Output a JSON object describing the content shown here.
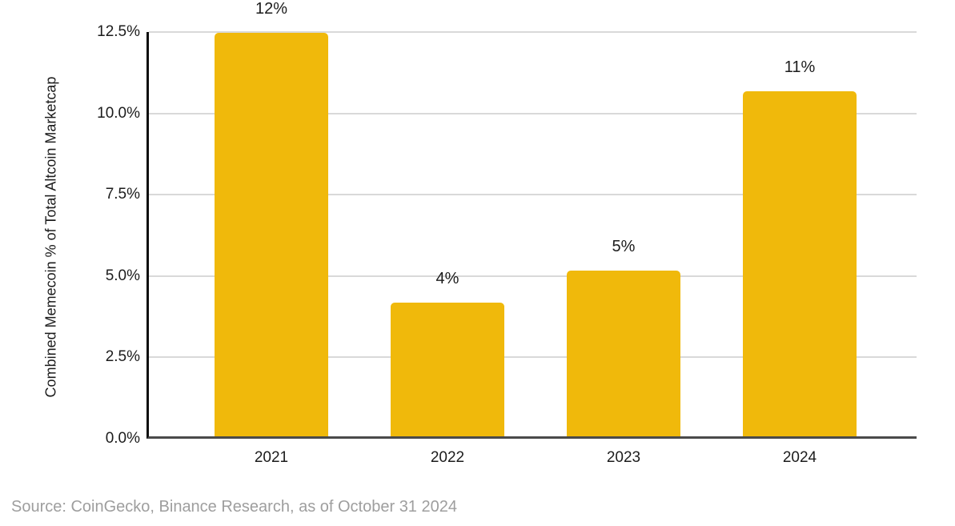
{
  "chart_data": {
    "type": "bar",
    "title": "",
    "categories": [
      "2021",
      "2022",
      "2023",
      "2024"
    ],
    "values": [
      12.4,
      4.1,
      5.1,
      10.6
    ],
    "bar_labels": [
      "12%",
      "4%",
      "5%",
      "11%"
    ],
    "xlabel": "",
    "ylabel": "Combined Memecoin % of Total Altcoin Marketcap",
    "ylim": [
      0,
      12.5
    ],
    "yticks": [
      "12.5%",
      "10.0%",
      "7.5%",
      "5.0%",
      "2.5%",
      "0.0%"
    ],
    "ytick_values": [
      12.5,
      10.0,
      7.5,
      5.0,
      2.5,
      0.0
    ],
    "grid": true,
    "legend": false
  },
  "source_note": "Source: CoinGecko, Binance Research, as of October 31 2024",
  "colors": {
    "bar": "#F0B90B",
    "grid": "#d9d9d9",
    "y_axis": "#0d0d0d",
    "x_axis": "#4a4a4a",
    "text": "#1c1c1c",
    "source_text": "#9e9e9e",
    "background": "#ffffff"
  }
}
